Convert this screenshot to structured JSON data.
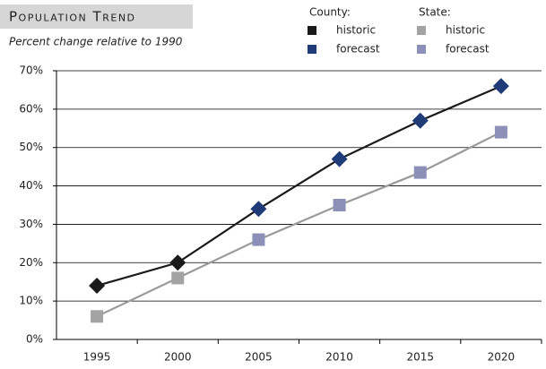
{
  "chart_data": {
    "type": "line",
    "title": "Population Trend",
    "subtitle": "Percent change relative to 1990",
    "categories": [
      "1995",
      "2000",
      "2005",
      "2010",
      "2015",
      "2020"
    ],
    "ylim": [
      0,
      70
    ],
    "yticks": [
      {
        "value": 0,
        "label": "0%"
      },
      {
        "value": 10,
        "label": "10%"
      },
      {
        "value": 20,
        "label": "20%"
      },
      {
        "value": 30,
        "label": "30%"
      },
      {
        "value": 40,
        "label": "40%"
      },
      {
        "value": 50,
        "label": "50%"
      },
      {
        "value": 60,
        "label": "60%"
      },
      {
        "value": 70,
        "label": "70%"
      }
    ],
    "grid": true,
    "groups": [
      {
        "name": "County:",
        "line_color": "#1a1a1a",
        "marker": "diamond",
        "series": [
          {
            "name": "historic",
            "color": "#1a1a1a",
            "values": [
              14,
              20,
              null,
              null,
              null,
              null
            ]
          },
          {
            "name": "forecast",
            "color": "#1f3c78",
            "values": [
              null,
              null,
              34,
              47,
              57,
              66
            ]
          }
        ]
      },
      {
        "name": "State:",
        "line_color": "#9a9a9a",
        "marker": "square",
        "series": [
          {
            "name": "historic",
            "color": "#a3a3a3",
            "values": [
              6,
              16,
              null,
              null,
              null,
              null
            ]
          },
          {
            "name": "forecast",
            "color": "#8c8fb8",
            "values": [
              null,
              null,
              26,
              35,
              43.5,
              54
            ]
          }
        ]
      }
    ]
  }
}
